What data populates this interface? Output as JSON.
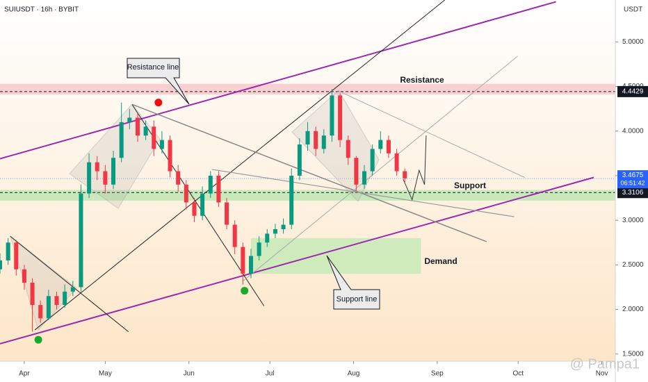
{
  "chart_data": {
    "type": "candlestick",
    "title": "SUIUSDT · 16h · BYBIT",
    "currency": "USDT",
    "watermark": "@ Pampa1",
    "xlim": [
      -9,
      219
    ],
    "ylim": [
      1.42,
      5.47
    ],
    "xticks": [
      {
        "value": 0,
        "label": "Apr"
      },
      {
        "value": 30,
        "label": "May"
      },
      {
        "value": 61,
        "label": "Jun"
      },
      {
        "value": 91,
        "label": "Jul"
      },
      {
        "value": 122,
        "label": "Aug"
      },
      {
        "value": 153,
        "label": "Sep"
      },
      {
        "value": 183,
        "label": "Oct"
      },
      {
        "value": 214,
        "label": "Nov"
      }
    ],
    "yticks": [
      {
        "value": 1.5,
        "label": "1.5000"
      },
      {
        "value": 2,
        "label": "2.0000"
      },
      {
        "value": 2.5,
        "label": "2.5000"
      },
      {
        "value": 3,
        "label": "3.0000"
      },
      {
        "value": 3.5,
        "label": "3.5000"
      },
      {
        "value": 4,
        "label": "4.0000"
      },
      {
        "value": 4.5,
        "label": "4.5000"
      },
      {
        "value": 5,
        "label": "5.0000"
      }
    ],
    "up_color": "#089981",
    "down_color": "#f23645",
    "x": [
      -9,
      -6,
      -3,
      0,
      3,
      6,
      9,
      12,
      15,
      18,
      21,
      24,
      27,
      30,
      33,
      36,
      39,
      42,
      45,
      48,
      51,
      54,
      57,
      60,
      63,
      66,
      69,
      72,
      75,
      78,
      81,
      84,
      87,
      90,
      93,
      96,
      99,
      102,
      105,
      108,
      111,
      114,
      117,
      120,
      123,
      126,
      129,
      132,
      135,
      138,
      141
    ],
    "open": [
      2.45,
      2.55,
      2.75,
      2.45,
      2.3,
      2.05,
      1.9,
      2.15,
      2.05,
      2.2,
      2.25,
      3.3,
      3.65,
      3.55,
      3.4,
      3.7,
      4.1,
      4.15,
      3.95,
      4.05,
      3.8,
      3.9,
      3.55,
      3.4,
      3.2,
      3.05,
      3.3,
      3.5,
      3.2,
      2.95,
      2.7,
      2.4,
      2.6,
      2.75,
      2.85,
      2.9,
      2.95,
      3.5,
      3.85,
      4.0,
      3.8,
      3.95,
      4.4,
      3.9,
      3.7,
      3.4,
      3.55,
      3.8,
      3.9,
      3.75,
      3.55
    ],
    "high": [
      2.63,
      2.8,
      2.78,
      2.5,
      2.35,
      2.1,
      2.22,
      2.2,
      2.28,
      2.32,
      3.4,
      3.75,
      3.72,
      3.62,
      3.78,
      4.32,
      4.25,
      4.2,
      4.12,
      4.12,
      4.0,
      3.95,
      3.62,
      3.45,
      3.25,
      3.38,
      3.55,
      3.55,
      3.25,
      3.0,
      2.75,
      2.68,
      2.82,
      2.9,
      2.96,
      3.02,
      3.58,
      3.92,
      4.1,
      4.05,
      4.02,
      4.47,
      4.42,
      3.95,
      3.72,
      3.62,
      3.85,
      4.0,
      3.95,
      3.8,
      3.58
    ],
    "low": [
      2.4,
      2.5,
      2.38,
      2.22,
      1.75,
      1.85,
      1.88,
      2.0,
      2.02,
      2.15,
      2.2,
      3.25,
      3.45,
      3.3,
      3.35,
      3.65,
      4.02,
      3.88,
      3.9,
      3.72,
      3.75,
      3.48,
      3.32,
      3.12,
      2.98,
      3.0,
      3.25,
      3.15,
      2.9,
      2.62,
      2.28,
      2.35,
      2.55,
      2.7,
      2.8,
      2.85,
      2.9,
      3.45,
      3.78,
      3.72,
      3.75,
      3.88,
      3.82,
      3.62,
      3.33,
      3.35,
      3.5,
      3.75,
      3.7,
      3.5,
      3.42
    ],
    "close": [
      2.55,
      2.75,
      2.45,
      2.3,
      2.05,
      1.9,
      2.15,
      2.05,
      2.2,
      2.25,
      3.3,
      3.65,
      3.55,
      3.4,
      3.7,
      4.1,
      4.15,
      3.95,
      4.05,
      3.8,
      3.9,
      3.55,
      3.4,
      3.2,
      3.05,
      3.3,
      3.5,
      3.2,
      2.95,
      2.7,
      2.4,
      2.6,
      2.75,
      2.85,
      2.9,
      2.95,
      3.5,
      3.85,
      4.0,
      3.8,
      3.95,
      4.4,
      3.9,
      3.7,
      3.4,
      3.55,
      3.8,
      3.9,
      3.75,
      3.55,
      3.47
    ],
    "zones": [
      {
        "y": [
          4.41,
          4.53
        ],
        "color": "#f8c9cc"
      },
      {
        "y": [
          3.22,
          3.34
        ],
        "color": "#bfe6b4"
      },
      {
        "x": [
          84,
          147
        ],
        "y": [
          2.4,
          2.8
        ],
        "color": "#c7eab7"
      }
    ],
    "levels": [
      {
        "value": 4.4429,
        "color": "#131722"
      },
      {
        "value": 3.3106,
        "color": "#131722"
      }
    ],
    "last_price": {
      "value": 3.4675,
      "countdown": "06:51:42",
      "color": "#2962ff"
    },
    "lines": [
      {
        "x": [
          -9,
          197
        ],
        "y": [
          3.69,
          5.45
        ],
        "color": "#9c27b0",
        "width": 2
      },
      {
        "x": [
          -9,
          211
        ],
        "y": [
          1.615,
          3.48
        ],
        "color": "#9c27b0",
        "width": 2
      },
      {
        "x": [
          3.9,
          155.8
        ],
        "y": [
          1.77,
          5.47
        ],
        "color": "#222222",
        "width": 1
      },
      {
        "x": [
          39.9,
          88.8
        ],
        "y": [
          4.3,
          2.04
        ],
        "color": "#222222",
        "width": 1
      },
      {
        "x": [
          -5.2,
          38.6
        ],
        "y": [
          2.82,
          1.75
        ],
        "color": "#222222",
        "width": 1
      },
      {
        "x": [
          39.9,
          171.3
        ],
        "y": [
          4.3,
          2.76
        ],
        "color": "#888888",
        "width": 1.5
      },
      {
        "x": [
          69.5,
          181.5
        ],
        "y": [
          3.57,
          3.04
        ],
        "color": "#999999",
        "width": 1.2
      },
      {
        "x": [
          81.1,
          182.8
        ],
        "y": [
          2.32,
          4.84
        ],
        "color": "#aaaaaa",
        "width": 1
      },
      {
        "x": [
          116.4,
          185.4
        ],
        "y": [
          4.45,
          3.48
        ],
        "color": "#aaaaaa",
        "width": 1
      },
      {
        "x": [
          140.4,
          143.7,
          146.3,
          148.3,
          148.9
        ],
        "y": [
          3.46,
          3.23,
          3.56,
          3.4,
          3.95
        ],
        "color": "#333333",
        "width": 1
      }
    ],
    "markers": [
      {
        "x": 49.7,
        "y": 4.32,
        "color": "#f20d0d"
      },
      {
        "x": 5.2,
        "y": 1.66,
        "color": "#1aaa2a"
      },
      {
        "x": 81.6,
        "y": 2.21,
        "color": "#1aaa2a"
      }
    ],
    "annotations": {
      "resistance_line": "Resistance line",
      "support_line": "Support line",
      "resistance": "Resistance",
      "support": "Support",
      "demand": "Demand"
    }
  }
}
